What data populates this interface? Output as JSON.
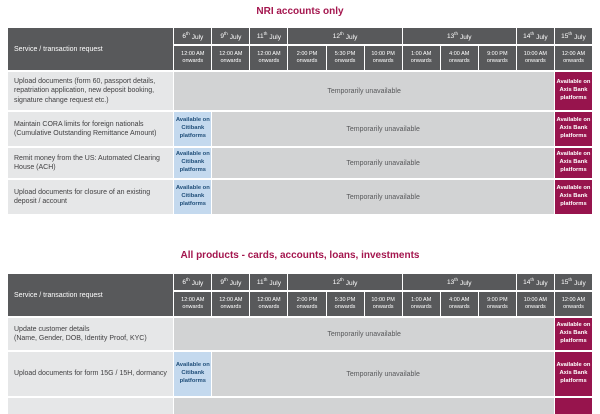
{
  "titles": {
    "table1": "NRI accounts only",
    "table2": "All products - cards, accounts, loans, investments"
  },
  "header": {
    "service": "Service / transaction request",
    "dates": [
      {
        "day": "6",
        "sup": "th",
        "month": "July"
      },
      {
        "day": "9",
        "sup": "th",
        "month": "July"
      },
      {
        "day": "11",
        "sup": "th",
        "month": "July"
      },
      {
        "day": "12",
        "sup": "th",
        "month": "July"
      },
      {
        "day": "13",
        "sup": "th",
        "month": "July"
      },
      {
        "day": "14",
        "sup": "th",
        "month": "July"
      },
      {
        "day": "15",
        "sup": "th",
        "month": "July"
      }
    ],
    "times": [
      {
        "t": "12:00 AM",
        "s": "onwards"
      },
      {
        "t": "12:00 AM",
        "s": "onwards"
      },
      {
        "t": "12:00 AM",
        "s": "onwards"
      },
      {
        "t": "2:00 PM",
        "s": "onwards"
      },
      {
        "t": "5:30 PM",
        "s": "onwards"
      },
      {
        "t": "10:00 PM",
        "s": "onwards"
      },
      {
        "t": "1:00 AM",
        "s": "onwards"
      },
      {
        "t": "4:00 AM",
        "s": "onwards"
      },
      {
        "t": "9:00 PM",
        "s": "onwards"
      },
      {
        "t": "10:00 AM",
        "s": "onwards"
      },
      {
        "t": "12:00 AM",
        "s": "onwards"
      }
    ]
  },
  "labels": {
    "unavailable": "Temporarily unavailable",
    "citibank": "Available on Citibank platforms",
    "axis": "Available on Axis Bank platforms"
  },
  "table1": {
    "rows": [
      {
        "main": "Upload documents (form 60, passport details, repatriation application, new deposit booking, signature change request etc.)",
        "sub": ""
      },
      {
        "main": "Maintain CORA limits for foreign nationals",
        "sub": "(Cumulative Outstanding Remittance Amount)"
      },
      {
        "main": "Remit money from the US: Automated Clearing House (ACH)",
        "sub": ""
      },
      {
        "main": "Upload documents for closure of an existing deposit / account",
        "sub": ""
      }
    ]
  },
  "table2": {
    "rows": [
      {
        "main": "Update customer details",
        "sub": "(Name, Gender, DOB, Identity Proof, KYC)"
      },
      {
        "main": "Upload documents for form 15G / 15H, dormancy",
        "sub": ""
      }
    ]
  },
  "colors": {
    "title": "#a4164e",
    "headerBg": "#58595b",
    "axisBg": "#97144d",
    "citiBg": "#c4d9ee",
    "citiText": "#1f4e79",
    "unavailBg": "#d2d3d4",
    "unavailText": "#58595b",
    "serviceBg": "#e6e7e8",
    "bodyText": "#414042"
  }
}
